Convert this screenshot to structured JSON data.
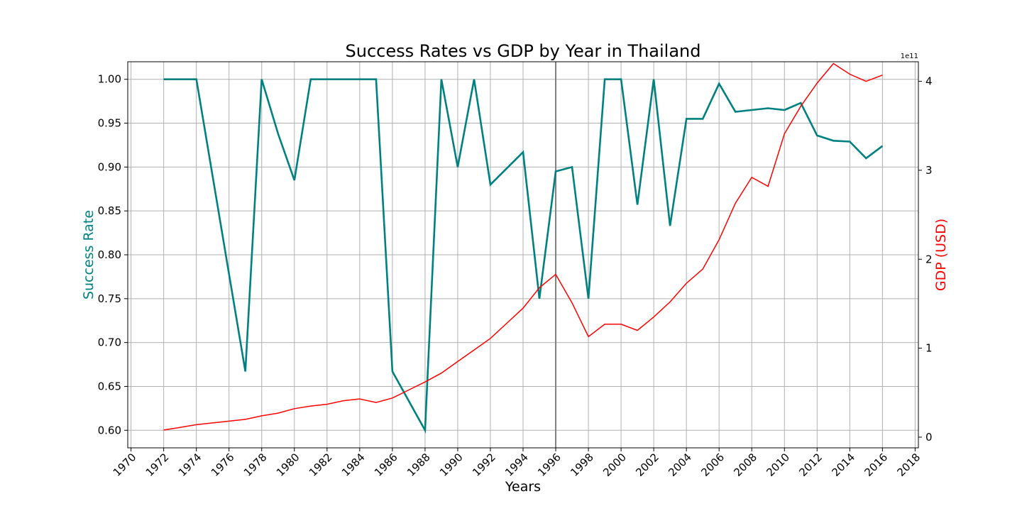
{
  "chart_data": {
    "type": "line",
    "title": "Success Rates vs GDP by Year in Thailand",
    "xlabel": "Years",
    "ylabel_left": "Success Rate",
    "ylabel_right": "GDP (USD)",
    "right_axis_offset": "1e11",
    "xlim": [
      1969.8,
      2018.2
    ],
    "ylim_left": [
      0.58,
      1.02
    ],
    "ylim_right": [
      -0.12,
      4.22
    ],
    "x_ticks": [
      1970,
      1972,
      1974,
      1976,
      1978,
      1980,
      1982,
      1984,
      1986,
      1988,
      1990,
      1992,
      1994,
      1996,
      1998,
      2000,
      2002,
      2004,
      2006,
      2008,
      2010,
      2012,
      2014,
      2016,
      2018
    ],
    "y_ticks_left": [
      "0.60",
      "0.65",
      "0.70",
      "0.75",
      "0.80",
      "0.85",
      "0.90",
      "0.95",
      "1.00"
    ],
    "y_ticks_right": [
      "0",
      "1",
      "2",
      "3",
      "4"
    ],
    "grid": true,
    "vertical_marker": 1996,
    "colors": {
      "success": "#008080",
      "gdp": "#ff0000",
      "grid": "#b0b0b0",
      "marker": "#808080"
    },
    "series": [
      {
        "name": "Success Rate",
        "axis": "left",
        "x": [
          1972,
          1974,
          1977,
          1978,
          1979,
          1980,
          1981,
          1985,
          1986,
          1988,
          1989,
          1990,
          1991,
          1992,
          1994,
          1995,
          1996,
          1997,
          1998,
          1999,
          2000,
          2001,
          2002,
          2003,
          2004,
          2005,
          2006,
          2007,
          2008,
          2009,
          2010,
          2011,
          2012,
          2013,
          2014,
          2015,
          2016
        ],
        "y": [
          1.0,
          1.0,
          0.667,
          1.0,
          0.938,
          0.885,
          1.0,
          1.0,
          0.667,
          0.6,
          1.0,
          0.9,
          1.0,
          0.88,
          0.917,
          0.75,
          0.895,
          0.9,
          0.75,
          1.0,
          1.0,
          0.857,
          1.0,
          0.833,
          0.955,
          0.955,
          0.995,
          0.963,
          0.965,
          0.967,
          0.965,
          0.973,
          0.936,
          0.93,
          0.929,
          0.91,
          0.924
        ]
      },
      {
        "name": "GDP (USD)",
        "axis": "right",
        "x": [
          1972,
          1973,
          1974,
          1975,
          1976,
          1977,
          1978,
          1979,
          1980,
          1981,
          1982,
          1983,
          1984,
          1985,
          1986,
          1987,
          1988,
          1989,
          1990,
          1991,
          1992,
          1993,
          1994,
          1995,
          1996,
          1997,
          1998,
          1999,
          2000,
          2001,
          2002,
          2003,
          2004,
          2005,
          2006,
          2007,
          2008,
          2009,
          2010,
          2011,
          2012,
          2013,
          2014,
          2015,
          2016
        ],
        "y": [
          0.08,
          0.11,
          0.14,
          0.16,
          0.18,
          0.2,
          0.24,
          0.27,
          0.32,
          0.35,
          0.37,
          0.41,
          0.43,
          0.39,
          0.44,
          0.53,
          0.62,
          0.72,
          0.85,
          0.98,
          1.11,
          1.28,
          1.45,
          1.68,
          1.83,
          1.51,
          1.13,
          1.27,
          1.27,
          1.2,
          1.35,
          1.52,
          1.73,
          1.89,
          2.22,
          2.63,
          2.92,
          2.82,
          3.41,
          3.72,
          3.98,
          4.2,
          4.08,
          4.0,
          4.07
        ]
      }
    ]
  }
}
